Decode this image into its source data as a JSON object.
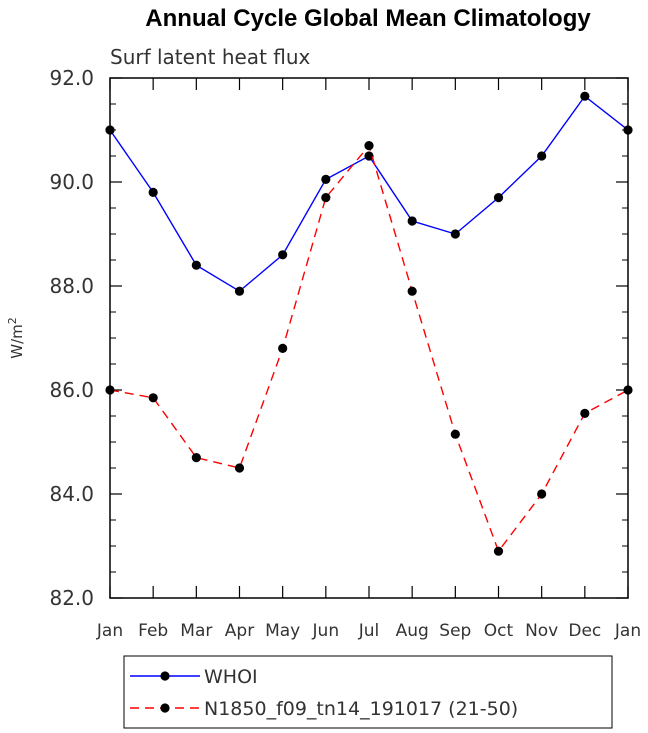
{
  "chart_data": {
    "type": "line",
    "title": "Annual Cycle Global Mean Climatology",
    "subtitle": "Surf latent heat flux",
    "ylabel_base": "W/m",
    "ylabel_exp": "2",
    "xlabel": "",
    "categories": [
      "Jan",
      "Feb",
      "Mar",
      "Apr",
      "May",
      "Jun",
      "Jul",
      "Aug",
      "Sep",
      "Oct",
      "Nov",
      "Dec",
      "Jan"
    ],
    "ylim": [
      82.0,
      92.0
    ],
    "yticks": [
      "82.0",
      "84.0",
      "86.0",
      "88.0",
      "90.0",
      "92.0"
    ],
    "series": [
      {
        "name": "WHOI",
        "color": "#0000ff",
        "dash": "solid",
        "values": [
          91.0,
          89.8,
          88.4,
          87.9,
          88.6,
          90.05,
          90.5,
          89.25,
          89.0,
          89.7,
          90.5,
          91.65,
          91.0
        ]
      },
      {
        "name": "N1850_f09_tn14_191017 (21-50)",
        "color": "#ff0000",
        "dash": "dashed",
        "values": [
          86.0,
          85.85,
          84.7,
          84.5,
          86.8,
          89.7,
          90.7,
          87.9,
          85.15,
          82.9,
          84.0,
          85.55,
          86.0
        ]
      }
    ],
    "legend_position": "bottom"
  }
}
